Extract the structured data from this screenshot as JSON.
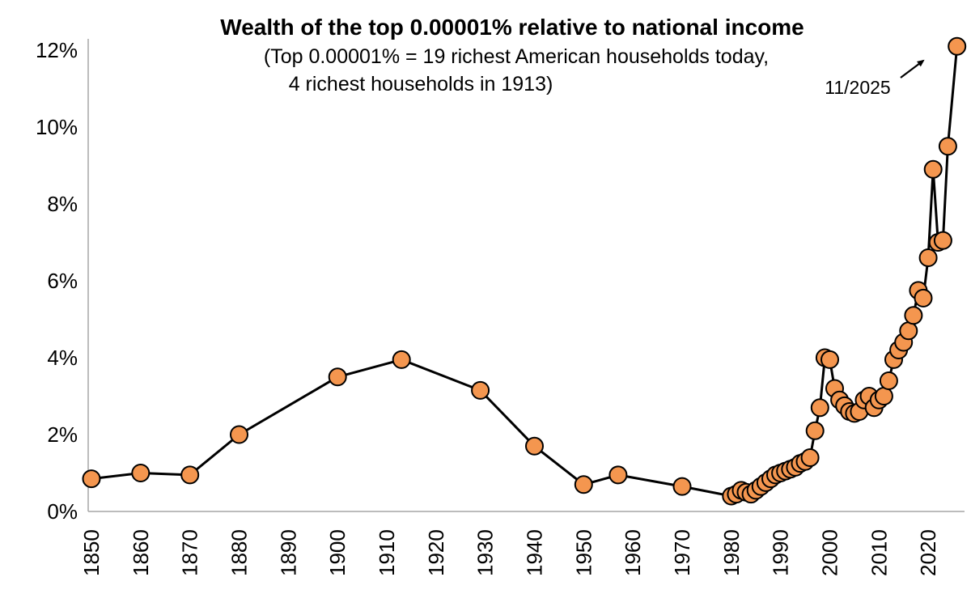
{
  "page": {
    "background": "#ffffff"
  },
  "header": {
    "title": "Wealth of the top 0.00001% relative to national income",
    "subtitle_line1": "(Top 0.00001% = 19 richest American households today,",
    "subtitle_line2": "4 richest households in 1913)"
  },
  "annotation": {
    "label": "11/2025"
  },
  "chart_data": {
    "type": "line",
    "title": "Wealth of the top 0.00001% relative to national income",
    "subtitle": "(Top 0.00001% = 19 richest American households today, 4 richest households in 1913)",
    "xlabel": "",
    "ylabel": "",
    "xlim": [
      1848,
      2028
    ],
    "ylim": [
      0,
      12.5
    ],
    "grid": false,
    "legend": "none",
    "x_ticks": [
      1850,
      1860,
      1870,
      1880,
      1890,
      1900,
      1910,
      1920,
      1930,
      1940,
      1950,
      1960,
      1970,
      1980,
      1990,
      2000,
      2010,
      2020
    ],
    "y_ticks": [
      {
        "value": 0,
        "label": "0%"
      },
      {
        "value": 2,
        "label": "2%"
      },
      {
        "value": 4,
        "label": "4%"
      },
      {
        "value": 6,
        "label": "6%"
      },
      {
        "value": 8,
        "label": "8%"
      },
      {
        "value": 10,
        "label": "10%"
      },
      {
        "value": 12,
        "label": "12%"
      }
    ],
    "annotation": {
      "label": "11/2025",
      "target_year": 2025.85,
      "target_value": 12.1
    },
    "colors": {
      "marker_fill": "#F4964F",
      "marker_edge": "#000000",
      "line": "#000000",
      "axis": "#A6A6A6",
      "text": "#000000"
    },
    "series": [
      {
        "name": "Wealth of top 0.00001% as % of national income",
        "points": [
          [
            1850,
            0.85
          ],
          [
            1860,
            1.0
          ],
          [
            1870,
            0.95
          ],
          [
            1880,
            2.0
          ],
          [
            1900,
            3.5
          ],
          [
            1913,
            3.95
          ],
          [
            1929,
            3.15
          ],
          [
            1940,
            1.7
          ],
          [
            1950,
            0.7
          ],
          [
            1957,
            0.95
          ],
          [
            1970,
            0.65
          ],
          [
            1980,
            0.4
          ],
          [
            1981,
            0.45
          ],
          [
            1982,
            0.55
          ],
          [
            1983,
            0.5
          ],
          [
            1984,
            0.45
          ],
          [
            1985,
            0.55
          ],
          [
            1986,
            0.65
          ],
          [
            1987,
            0.75
          ],
          [
            1988,
            0.85
          ],
          [
            1989,
            0.95
          ],
          [
            1990,
            1.0
          ],
          [
            1991,
            1.05
          ],
          [
            1992,
            1.1
          ],
          [
            1993,
            1.15
          ],
          [
            1994,
            1.25
          ],
          [
            1995,
            1.3
          ],
          [
            1996,
            1.4
          ],
          [
            1997,
            2.1
          ],
          [
            1998,
            2.7
          ],
          [
            1999,
            4.0
          ],
          [
            2000,
            3.95
          ],
          [
            2001,
            3.2
          ],
          [
            2002,
            2.9
          ],
          [
            2003,
            2.75
          ],
          [
            2004,
            2.6
          ],
          [
            2005,
            2.55
          ],
          [
            2006,
            2.6
          ],
          [
            2007,
            2.9
          ],
          [
            2008,
            3.0
          ],
          [
            2009,
            2.7
          ],
          [
            2010,
            2.9
          ],
          [
            2011,
            3.0
          ],
          [
            2012,
            3.4
          ],
          [
            2013,
            3.95
          ],
          [
            2014,
            4.2
          ],
          [
            2015,
            4.4
          ],
          [
            2016,
            4.7
          ],
          [
            2017,
            5.1
          ],
          [
            2018,
            5.75
          ],
          [
            2019,
            5.55
          ],
          [
            2020,
            6.6
          ],
          [
            2021,
            8.9
          ],
          [
            2022,
            7.0
          ],
          [
            2023,
            7.05
          ],
          [
            2024,
            9.5
          ],
          [
            2025.85,
            12.1
          ]
        ]
      }
    ]
  }
}
